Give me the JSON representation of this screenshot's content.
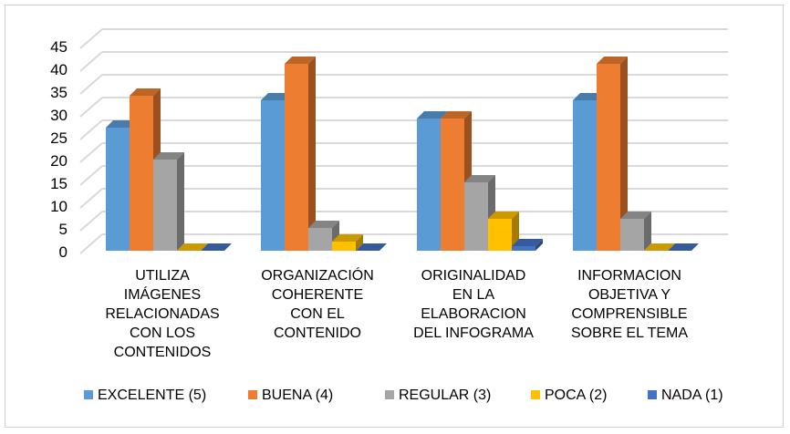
{
  "chart_data": {
    "type": "bar",
    "style": "3d-clustered-column",
    "categories": [
      [
        "UTILIZA",
        "IMÁGENES",
        "RELACIONADAS",
        "CON LOS",
        "CONTENIDOS"
      ],
      [
        "ORGANIZACIÓN",
        "COHERENTE",
        "CON EL",
        "CONTENIDO"
      ],
      [
        "ORIGINALIDAD",
        "EN LA",
        "ELABORACION",
        "DEL INFOGRAMA"
      ],
      [
        "INFORMACION",
        "OBJETIVA Y",
        "COMPRENSIBLE",
        "SOBRE EL TEMA"
      ]
    ],
    "series": [
      {
        "name": "EXCELENTE (5)",
        "color": "#5b9bd5",
        "values": [
          27,
          33,
          29,
          33
        ]
      },
      {
        "name": "BUENA (4)",
        "color": "#ed7d31",
        "values": [
          34,
          41,
          29,
          41
        ]
      },
      {
        "name": "REGULAR (3)",
        "color": "#a5a5a5",
        "values": [
          20,
          5,
          15,
          7
        ]
      },
      {
        "name": "POCA (2)",
        "color": "#ffc000",
        "values": [
          0,
          2,
          7,
          0
        ]
      },
      {
        "name": "NADA (1)",
        "color": "#4472c4",
        "values": [
          0,
          0,
          1,
          0
        ]
      }
    ],
    "yticks": [
      0,
      5,
      10,
      15,
      20,
      25,
      30,
      35,
      40,
      45
    ],
    "ylim": [
      0,
      45
    ],
    "grid": true,
    "legend": "bottom"
  }
}
